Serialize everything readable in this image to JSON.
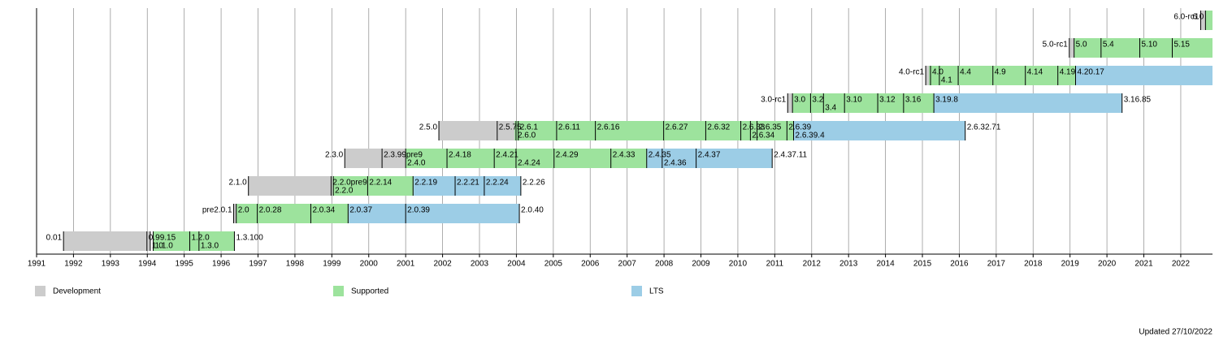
{
  "chart_data": {
    "type": "timeline",
    "xlim": [
      1991,
      2022.86
    ],
    "xticks": [
      1991,
      1992,
      1993,
      1994,
      1995,
      1996,
      1997,
      1998,
      1999,
      2000,
      2001,
      2002,
      2003,
      2004,
      2005,
      2006,
      2007,
      2008,
      2009,
      2010,
      2011,
      2012,
      2013,
      2014,
      2015,
      2016,
      2017,
      2018,
      2019,
      2020,
      2021,
      2022
    ],
    "grid": true,
    "statuses": [
      {
        "name": "Development",
        "color": "#cccccc"
      },
      {
        "name": "Supported",
        "color": "#9de39d"
      },
      {
        "name": "LTS",
        "color": "#9ccde6"
      }
    ],
    "rows": [
      {
        "segments": [
          {
            "status": "Development",
            "start": 1991.73,
            "end": 1994.08
          },
          {
            "status": "Supported",
            "start": 1994.16,
            "end": 1996.36
          }
        ],
        "releases": [
          {
            "x": 1991.73,
            "label": "0.01"
          },
          {
            "x": 1993.99,
            "label": "0.99.15"
          },
          {
            "x": 1994.08,
            "label": "1.0"
          },
          {
            "x": 1994.16,
            "label": "1.1.0"
          },
          {
            "x": 1995.15,
            "label": "1.2.0"
          },
          {
            "x": 1995.4,
            "label": "1.3.0"
          },
          {
            "x": 1996.36,
            "label": "1.3.100"
          }
        ]
      },
      {
        "segments": [
          {
            "status": "Development",
            "start": 1996.34,
            "end": 1996.41
          },
          {
            "status": "Supported",
            "start": 1996.41,
            "end": 1999.46
          },
          {
            "status": "LTS",
            "start": 1999.46,
            "end": 2004.08
          }
        ],
        "releases": [
          {
            "x": 1996.34,
            "label": "pre2.0.1"
          },
          {
            "x": 1996.41,
            "label": "2.0"
          },
          {
            "x": 1996.98,
            "label": "2.0.28"
          },
          {
            "x": 1998.43,
            "label": "2.0.34"
          },
          {
            "x": 1999.44,
            "label": "2.0.37"
          },
          {
            "x": 2001.0,
            "label": "2.0.39"
          },
          {
            "x": 2004.08,
            "label": "2.0.40"
          }
        ]
      },
      {
        "segments": [
          {
            "status": "Development",
            "start": 1996.74,
            "end": 1999.02
          },
          {
            "status": "Supported",
            "start": 1999.02,
            "end": 2001.22
          },
          {
            "status": "LTS",
            "start": 2001.22,
            "end": 2004.12
          }
        ],
        "releases": [
          {
            "x": 1996.74,
            "label": "2.1.0"
          },
          {
            "x": 1998.98,
            "label": "2.2.0pre9"
          },
          {
            "x": 1999.04,
            "label": "2.2.0"
          },
          {
            "x": 1999.97,
            "label": "2.2.14"
          },
          {
            "x": 2001.2,
            "label": "2.2.19"
          },
          {
            "x": 2002.34,
            "label": "2.2.21"
          },
          {
            "x": 2003.13,
            "label": "2.2.24"
          },
          {
            "x": 2004.12,
            "label": "2.2.26"
          }
        ]
      },
      {
        "segments": [
          {
            "status": "Development",
            "start": 1999.35,
            "end": 2001.0
          },
          {
            "status": "Supported",
            "start": 2001.0,
            "end": 2007.53
          },
          {
            "status": "LTS",
            "start": 2007.53,
            "end": 2010.93
          }
        ],
        "releases": [
          {
            "x": 1999.35,
            "label": "2.3.0"
          },
          {
            "x": 2000.36,
            "label": "2.3.99pre9"
          },
          {
            "x": 2001.0,
            "label": "2.4.0"
          },
          {
            "x": 2002.12,
            "label": "2.4.18"
          },
          {
            "x": 2003.4,
            "label": "2.4.21"
          },
          {
            "x": 2003.99,
            "label": "2.4.24"
          },
          {
            "x": 2005.02,
            "label": "2.4.29"
          },
          {
            "x": 2006.56,
            "label": "2.4.33"
          },
          {
            "x": 2007.53,
            "label": "2.4.35"
          },
          {
            "x": 2007.95,
            "label": "2.4.36"
          },
          {
            "x": 2008.87,
            "label": "2.4.37"
          },
          {
            "x": 2010.93,
            "label": "2.4.37.11"
          }
        ]
      },
      {
        "segments": [
          {
            "status": "Development",
            "start": 2001.9,
            "end": 2003.95
          },
          {
            "status": "Supported",
            "start": 2003.95,
            "end": 2011.51
          },
          {
            "status": "LTS",
            "start": 2011.51,
            "end": 2016.16
          }
        ],
        "releases": [
          {
            "x": 2001.9,
            "label": "2.5.0"
          },
          {
            "x": 2003.48,
            "label": "2.5.75"
          },
          {
            "x": 2003.99,
            "label": "2.6.0"
          },
          {
            "x": 2004.05,
            "label": "2.6.1"
          },
          {
            "x": 2005.09,
            "label": "2.6.11"
          },
          {
            "x": 2006.14,
            "label": "2.6.16"
          },
          {
            "x": 2007.99,
            "label": "2.6.27"
          },
          {
            "x": 2009.13,
            "label": "2.6.32"
          },
          {
            "x": 2010.08,
            "label": "2.6.33"
          },
          {
            "x": 2010.34,
            "label": "2.6.34"
          },
          {
            "x": 2010.52,
            "label": "2.6.35"
          },
          {
            "x": 2011.33,
            "label": "2.6.39"
          },
          {
            "x": 2011.51,
            "label": "2.6.39.4"
          },
          {
            "x": 2016.16,
            "label": "2.6.32.71"
          }
        ]
      },
      {
        "segments": [
          {
            "status": "Development",
            "start": 2011.35,
            "end": 2011.48
          },
          {
            "status": "Supported",
            "start": 2011.48,
            "end": 2015.31
          },
          {
            "status": "LTS",
            "start": 2015.31,
            "end": 2020.41
          }
        ],
        "releases": [
          {
            "x": 2011.35,
            "label": "3.0-rc1"
          },
          {
            "x": 2011.48,
            "label": "3.0"
          },
          {
            "x": 2011.97,
            "label": "3.2"
          },
          {
            "x": 2012.32,
            "label": "3.4"
          },
          {
            "x": 2012.89,
            "label": "3.10"
          },
          {
            "x": 2013.79,
            "label": "3.12"
          },
          {
            "x": 2014.49,
            "label": "3.16"
          },
          {
            "x": 2015.31,
            "label": "3.19.8"
          },
          {
            "x": 2020.41,
            "label": "3.16.85"
          }
        ]
      },
      {
        "segments": [
          {
            "status": "Development",
            "start": 2015.09,
            "end": 2015.18
          },
          {
            "status": "Supported",
            "start": 2015.18,
            "end": 2019.15
          },
          {
            "status": "LTS",
            "start": 2019.15,
            "end": 2022.86
          }
        ],
        "releases": [
          {
            "x": 2015.09,
            "label": "4.0-rc1"
          },
          {
            "x": 2015.22,
            "label": "4.0"
          },
          {
            "x": 2015.46,
            "label": "4.1"
          },
          {
            "x": 2015.97,
            "label": "4.4"
          },
          {
            "x": 2016.91,
            "label": "4.9"
          },
          {
            "x": 2017.79,
            "label": "4.14"
          },
          {
            "x": 2018.67,
            "label": "4.19"
          },
          {
            "x": 2019.15,
            "label": "4.20.17"
          }
        ]
      },
      {
        "segments": [
          {
            "status": "Development",
            "start": 2018.98,
            "end": 2019.11
          },
          {
            "status": "Supported",
            "start": 2019.11,
            "end": 2022.86
          }
        ],
        "releases": [
          {
            "x": 2018.98,
            "label": "5.0-rc1"
          },
          {
            "x": 2019.11,
            "label": "5.0"
          },
          {
            "x": 2019.84,
            "label": "5.4"
          },
          {
            "x": 2020.89,
            "label": "5.10"
          },
          {
            "x": 2021.77,
            "label": "5.15"
          }
        ]
      },
      {
        "segments": [
          {
            "status": "Development",
            "start": 2022.54,
            "end": 2022.67
          },
          {
            "status": "Supported",
            "start": 2022.67,
            "end": 2022.86
          }
        ],
        "releases": [
          {
            "x": 2022.54,
            "label": "6.0-rc1"
          },
          {
            "x": 2022.67,
            "label": "6.0"
          }
        ]
      }
    ],
    "footnote": "Updated 27/10/2022"
  }
}
